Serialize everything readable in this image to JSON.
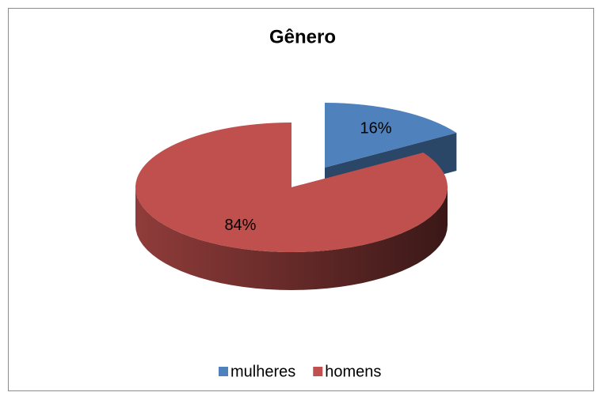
{
  "chart_data": {
    "type": "pie",
    "title": "Gênero",
    "categories": [
      "mulheres",
      "homens"
    ],
    "values": [
      16,
      84
    ],
    "value_labels": [
      "16%",
      "84%"
    ],
    "colors": [
      "#4f81bd",
      "#c0504d"
    ],
    "legend": "bottom"
  }
}
